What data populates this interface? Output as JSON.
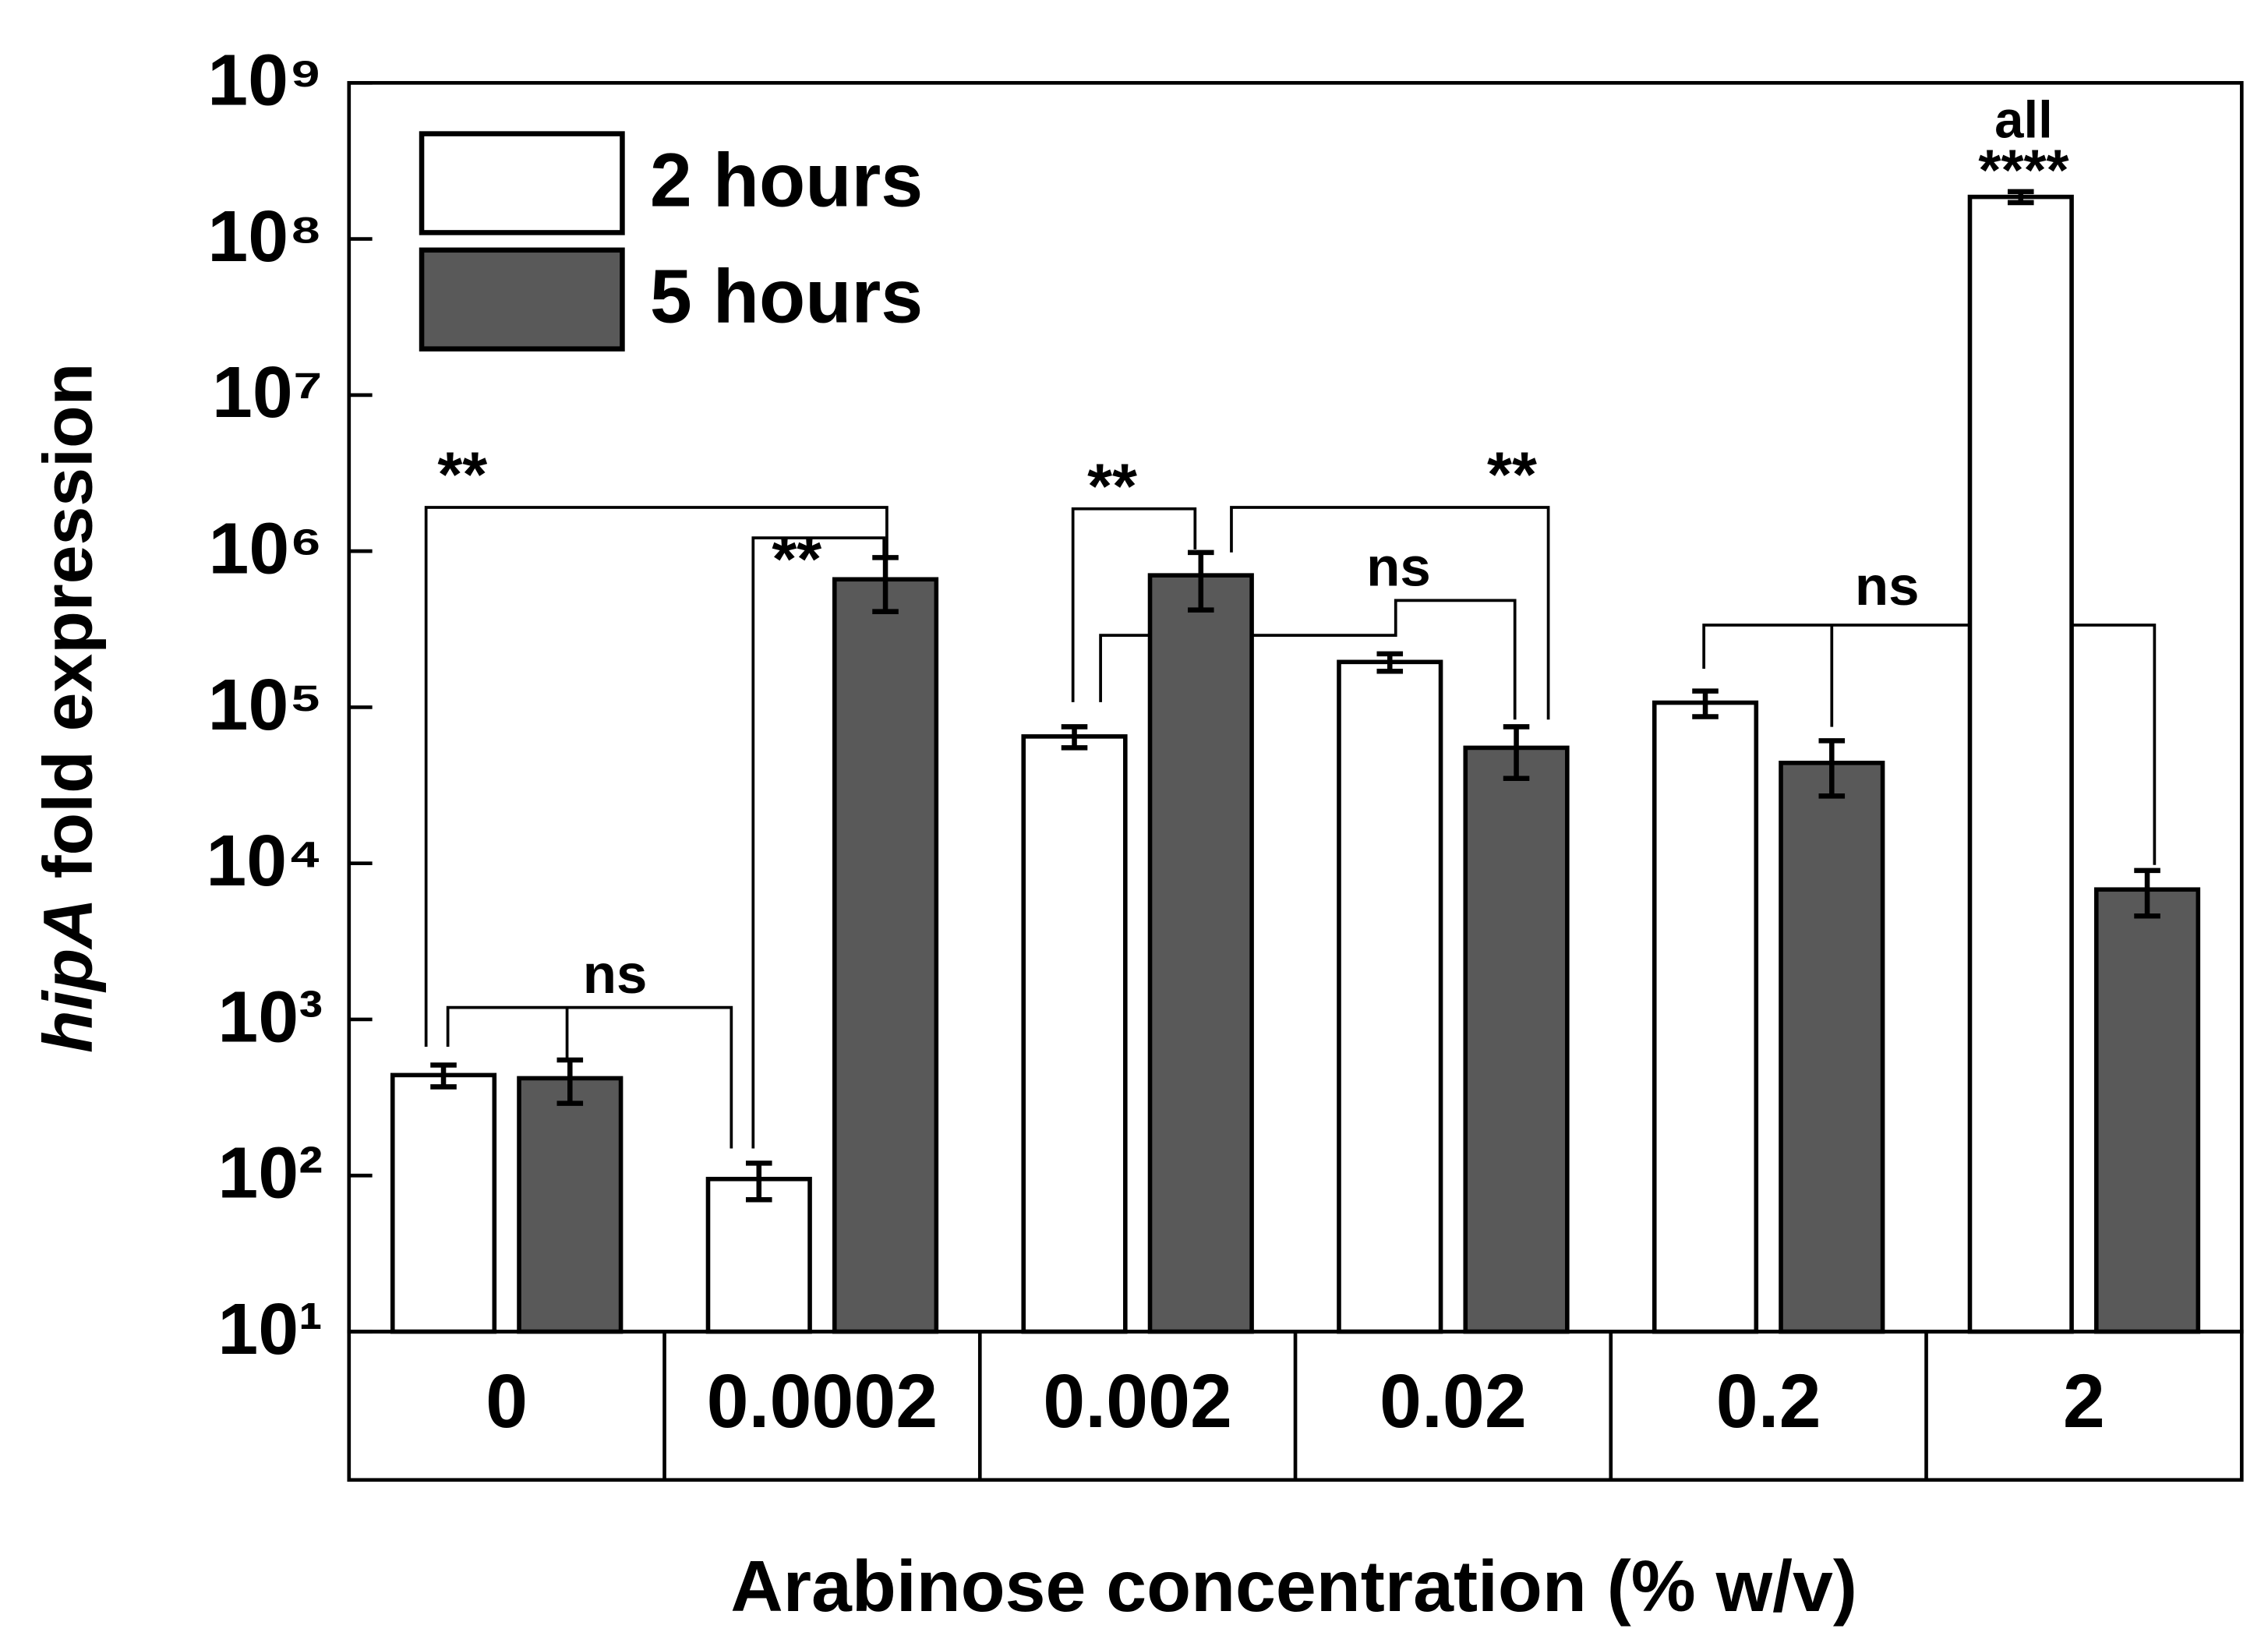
{
  "chart_data": {
    "type": "bar",
    "y_label": [
      "hipA",
      "fold expression"
    ],
    "x_label": "Arabinose concentration (% w/v)",
    "categories": [
      "0",
      "0.0002",
      "0.002",
      "0.02",
      "0.2",
      "2"
    ],
    "series": [
      {
        "name": "2 hours",
        "color": "#ffffff",
        "values": [
          440,
          95,
          65000,
          195000,
          107000,
          186000000
        ],
        "errors": [
          70,
          25,
          10000,
          25000,
          20000,
          15000000
        ]
      },
      {
        "name": "5 hours",
        "color": "#595959",
        "values": [
          420,
          660000,
          700000,
          55000,
          44000,
          6800
        ],
        "errors": [
          130,
          250000,
          280000,
          20000,
          17000,
          2200
        ]
      }
    ],
    "log_scale": true,
    "ylim": [
      10,
      1000000000
    ],
    "yticks": [
      {
        "value": 10,
        "label": "10¹"
      },
      {
        "value": 100,
        "label": "10²"
      },
      {
        "value": 1000,
        "label": "10³"
      },
      {
        "value": 10000,
        "label": "10⁴"
      },
      {
        "value": 100000,
        "label": "10⁵"
      },
      {
        "value": 1000000,
        "label": "10⁶"
      },
      {
        "value": 10000000,
        "label": "10⁷"
      },
      {
        "value": 100000000,
        "label": "10⁸"
      },
      {
        "value": 1000000000,
        "label": "10⁹"
      }
    ],
    "legend": "upper left",
    "annotations": [
      "**",
      "ns",
      "**",
      "**",
      "**",
      "ns",
      "ns",
      "all",
      "****"
    ]
  }
}
